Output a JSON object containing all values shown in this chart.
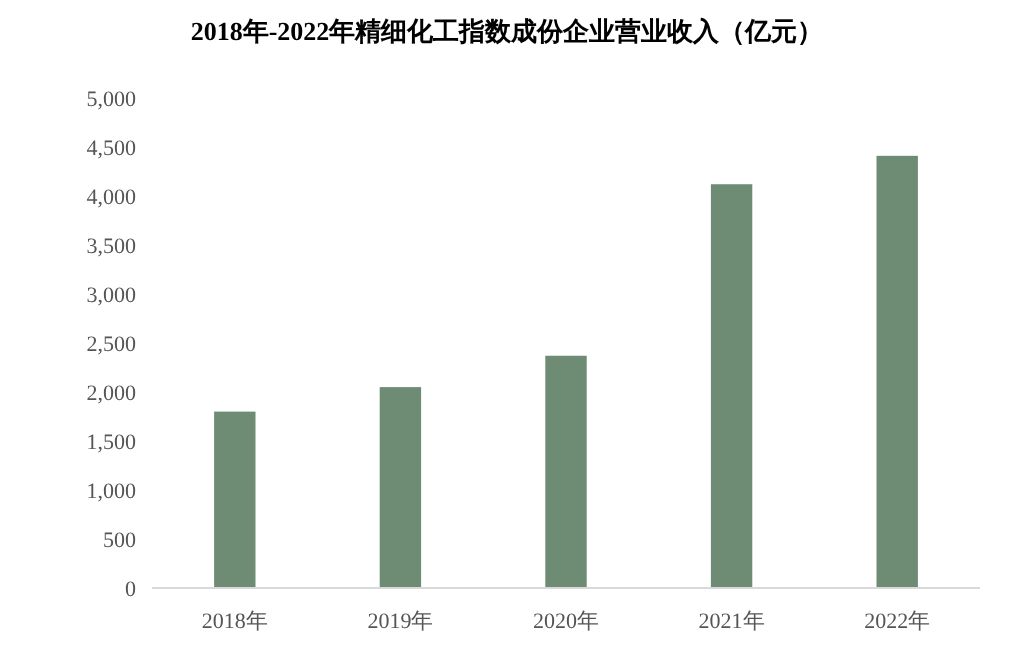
{
  "chart_data": {
    "type": "bar",
    "title": "2018年-2022年精细化工指数成份企业营业收入（亿元）",
    "categories": [
      "2018年",
      "2019年",
      "2020年",
      "2021年",
      "2022年"
    ],
    "values": [
      1800,
      2050,
      2370,
      4120,
      4410
    ],
    "color": "#6e8b74",
    "ylim": [
      0,
      5000
    ],
    "yticks": [
      0,
      500,
      {
        "value": 1000,
        "label": "1,000"
      },
      {
        "value": 1500,
        "label": "1,500"
      },
      {
        "value": 2000,
        "label": "2,000"
      },
      {
        "value": 2500,
        "label": "2,500"
      },
      {
        "value": 3000,
        "label": "3,000"
      },
      {
        "value": 3500,
        "label": "3,500"
      },
      {
        "value": 4000,
        "label": "4,000"
      },
      {
        "value": 4500,
        "label": "4,500"
      },
      {
        "value": 5000,
        "label": "5,000"
      }
    ],
    "grid": false
  }
}
